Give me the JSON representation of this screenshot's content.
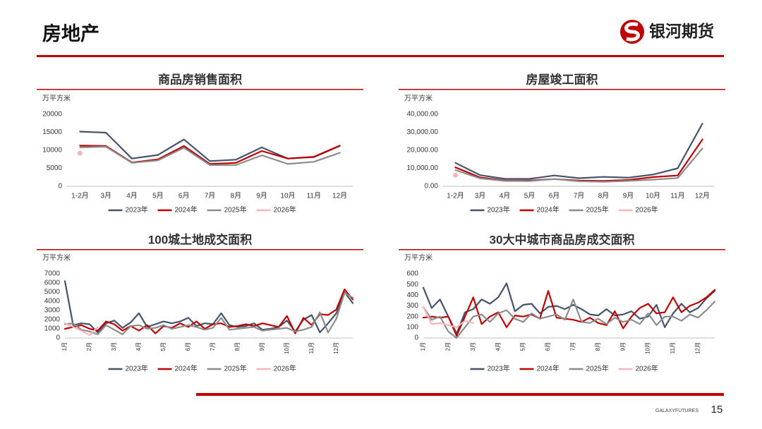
{
  "header": {
    "title": "房地产",
    "logo_text": "银河期货"
  },
  "footer": {
    "brand": "GALAXYFUTURES",
    "page": "15"
  },
  "chart_data": [
    {
      "type": "line",
      "title": "商品房销售面积",
      "y_label": "万平方米",
      "categories": [
        "1-2月",
        "3月",
        "4月",
        "5月",
        "6月",
        "7月",
        "8月",
        "9月",
        "10月",
        "11月",
        "12月"
      ],
      "ylim": [
        0,
        20000
      ],
      "yticks": [
        0,
        5000,
        10000,
        15000,
        20000
      ],
      "series": [
        {
          "name": "2023年",
          "color": "#44546a",
          "values": [
            15200,
            14900,
            7700,
            8700,
            13000,
            7000,
            7400,
            10800,
            7700,
            8100,
            11200
          ]
        },
        {
          "name": "2024年",
          "color": "#c00000",
          "values": [
            11300,
            11200,
            6600,
            7500,
            11200,
            6200,
            6500,
            9800,
            7700,
            8200,
            11300
          ]
        },
        {
          "name": "2025年",
          "color": "#8c8c8c",
          "values": [
            10800,
            11000,
            6500,
            7200,
            10700,
            5900,
            5900,
            8600,
            6200,
            6800,
            9300
          ]
        },
        {
          "name": "2026年",
          "color": "#f4b6b6",
          "values": [
            9200,
            null,
            null,
            null,
            null,
            null,
            null,
            null,
            null,
            null,
            null
          ]
        }
      ]
    },
    {
      "type": "line",
      "title": "房屋竣工面积",
      "y_label": "万平方米",
      "categories": [
        "1-2月",
        "3月",
        "4月",
        "5月",
        "6月",
        "7月",
        "8月",
        "9月",
        "10月",
        "11月",
        "12月"
      ],
      "ylim": [
        0,
        40000
      ],
      "yticks": [
        {
          "value": 0,
          "label": "0.00"
        },
        {
          "value": 10000,
          "label": "10,000.00"
        },
        {
          "value": 20000,
          "label": "20,000.00"
        },
        {
          "value": 30000,
          "label": "30,000.00"
        },
        {
          "value": 40000,
          "label": "40,000.00"
        }
      ],
      "series": [
        {
          "name": "2023年",
          "color": "#44546a",
          "values": [
            13000,
            6200,
            4100,
            4100,
            6000,
            4500,
            5200,
            4800,
            6500,
            10000,
            34800
          ]
        },
        {
          "name": "2024年",
          "color": "#c00000",
          "values": [
            10500,
            4900,
            3200,
            3200,
            4000,
            3200,
            3000,
            3500,
            5100,
            6000,
            26000
          ]
        },
        {
          "name": "2025年",
          "color": "#8c8c8c",
          "values": [
            9000,
            4400,
            3000,
            2900,
            4000,
            2800,
            2500,
            3000,
            3700,
            4600,
            21000
          ]
        },
        {
          "name": "2026年",
          "color": "#f4b6b6",
          "values": [
            6200,
            null,
            null,
            null,
            null,
            null,
            null,
            null,
            null,
            null,
            null
          ]
        }
      ]
    },
    {
      "type": "line",
      "title": "100城土地成交面积",
      "y_label": "万平方米",
      "categories": [
        "1月",
        null,
        null,
        "2月",
        null,
        null,
        "3月",
        null,
        null,
        "4月",
        null,
        null,
        "5月",
        null,
        null,
        "6月",
        null,
        null,
        "7月",
        null,
        null,
        "8月",
        null,
        null,
        "9月",
        null,
        null,
        "10月",
        null,
        null,
        "11月",
        null,
        null,
        "12月",
        null,
        null
      ],
      "ylim": [
        0,
        7000
      ],
      "yticks": [
        0,
        1000,
        2000,
        3000,
        4000,
        5000,
        6000,
        7000
      ],
      "series": [
        {
          "name": "2023年",
          "color": "#44546a",
          "values": [
            6200,
            1400,
            1600,
            1500,
            600,
            1600,
            1900,
            1100,
            1700,
            2700,
            1200,
            1500,
            1800,
            1600,
            1800,
            2200,
            1300,
            1600,
            1500,
            2700,
            1400,
            1200,
            1300,
            1600,
            900,
            1000,
            1200,
            1900,
            700,
            2000,
            2500,
            600,
            1600,
            2700,
            5000,
            3800
          ]
        },
        {
          "name": "2024年",
          "color": "#c00000",
          "values": [
            1000,
            1200,
            1400,
            1000,
            800,
            1800,
            1500,
            800,
            1300,
            800,
            1400,
            500,
            1300,
            1100,
            1600,
            1200,
            1800,
            1000,
            1500,
            1600,
            1200,
            1300,
            1500,
            1300,
            1600,
            1400,
            1200,
            2400,
            500,
            2200,
            1400,
            2600,
            2500,
            3100,
            5300,
            4200
          ]
        },
        {
          "name": "2025年",
          "color": "#8c8c8c",
          "values": [
            1500,
            1600,
            900,
            700,
            400,
            1400,
            900,
            400,
            1300,
            1400,
            1000,
            1100,
            1400,
            1000,
            1200,
            1400,
            1200,
            900,
            1100,
            2200,
            900,
            1000,
            1100,
            1200,
            800,
            900,
            1000,
            1100,
            700,
            900,
            1200,
            2800,
            600,
            2100,
            4900,
            4400
          ]
        },
        {
          "name": "2026年",
          "color": "#f4b6b6",
          "values": [
            1600,
            1200,
            800,
            300,
            1200,
            null,
            null,
            null,
            null,
            null,
            null,
            null,
            null,
            null,
            null,
            null,
            null,
            null,
            null,
            null,
            null,
            null,
            null,
            null,
            null,
            null,
            null,
            null,
            null,
            null,
            null,
            null,
            null,
            null,
            null,
            null
          ]
        }
      ]
    },
    {
      "type": "line",
      "title": "30大中城市商品房成交面积",
      "y_label": "万平方米",
      "categories": [
        "1月",
        null,
        null,
        "2月",
        null,
        null,
        "3月",
        null,
        null,
        "4月",
        null,
        null,
        "5月",
        null,
        null,
        "6月",
        null,
        null,
        "7月",
        null,
        null,
        "8月",
        null,
        null,
        "9月",
        null,
        null,
        "10月",
        null,
        null,
        "11月",
        null,
        null,
        "12月",
        null,
        null
      ],
      "ylim": [
        0,
        600
      ],
      "yticks": [
        0,
        100,
        200,
        300,
        400,
        500,
        600
      ],
      "series": [
        {
          "name": "2023年",
          "color": "#44546a",
          "values": [
            470,
            280,
            360,
            200,
            40,
            240,
            270,
            360,
            320,
            380,
            510,
            250,
            310,
            320,
            230,
            290,
            300,
            270,
            310,
            270,
            220,
            210,
            270,
            210,
            220,
            250,
            180,
            200,
            310,
            100,
            230,
            320,
            240,
            280,
            370,
            440
          ]
        },
        {
          "name": "2024年",
          "color": "#c00000",
          "values": [
            190,
            200,
            190,
            200,
            20,
            200,
            380,
            130,
            200,
            240,
            100,
            210,
            200,
            220,
            180,
            440,
            190,
            180,
            170,
            150,
            190,
            140,
            120,
            250,
            90,
            200,
            280,
            320,
            230,
            240,
            380,
            240,
            300,
            330,
            380,
            450
          ]
        },
        {
          "name": "2025年",
          "color": "#8c8c8c",
          "values": [
            290,
            170,
            200,
            60,
            0,
            100,
            200,
            220,
            150,
            230,
            260,
            180,
            150,
            230,
            180,
            200,
            220,
            170,
            360,
            150,
            140,
            180,
            130,
            190,
            150,
            170,
            130,
            230,
            120,
            200,
            200,
            160,
            220,
            190,
            260,
            340
          ]
        },
        {
          "name": "2026年",
          "color": "#f4b6b6",
          "values": [
            290,
            130,
            140,
            120,
            100,
            160,
            140,
            null,
            null,
            null,
            null,
            null,
            null,
            null,
            null,
            null,
            null,
            null,
            null,
            null,
            null,
            null,
            null,
            null,
            null,
            null,
            null,
            null,
            null,
            null,
            null,
            null,
            null,
            null,
            null,
            null
          ]
        }
      ]
    }
  ]
}
